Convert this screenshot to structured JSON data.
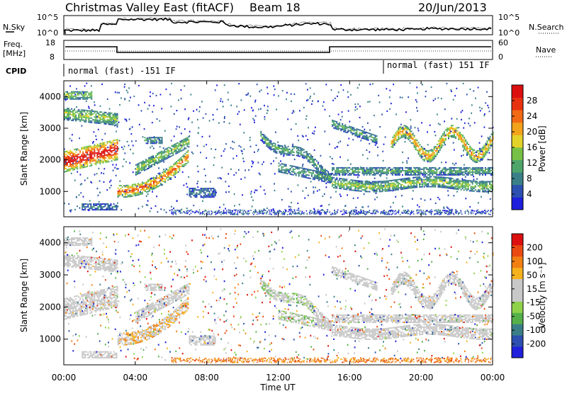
{
  "header": {
    "title": "Christmas Valley East (fitACF)",
    "beam": "Beam 18",
    "date": "20/Jun/2013"
  },
  "left_labels": {
    "nsky": "N.Sky",
    "freq_line1": "Freq.",
    "freq_line2": "[MHz]",
    "cpid": "CPID"
  },
  "right_labels": {
    "nsearch": "N.Search",
    "nave": "Nave"
  },
  "noise_panel": {
    "left_ticks": [
      "10^5",
      "10^0"
    ],
    "right_ticks": [
      "10^5",
      "10^0"
    ]
  },
  "freq_panel": {
    "left_ticks": [
      "18",
      "8"
    ],
    "right_ticks": [
      "60",
      "0"
    ]
  },
  "cpid_panel": {
    "mode_a": "normal (fast) -151 IF",
    "mode_b": "normal (fast) 151 IF"
  },
  "colors": {
    "power_scale": [
      "#1f1fdc",
      "#2c4fb0",
      "#3a7f88",
      "#4ea56a",
      "#77c246",
      "#e3d22a",
      "#f3a21b",
      "#f26a14",
      "#e8320f",
      "#dc0f0f"
    ],
    "velocity_scale": [
      "#1f1fdc",
      "#2c4fb0",
      "#3a7f88",
      "#55b04a",
      "#8fd24a",
      "#c8c8c8",
      "#c8c8c8",
      "#f5b21e",
      "#f27f12",
      "#ea4a12",
      "#dc0f0f"
    ]
  },
  "chart_data": [
    {
      "type": "heatmap",
      "name": "power",
      "ylabel": "Slant Range [km]",
      "yticks": [
        "1000",
        "2000",
        "3000",
        "4000"
      ],
      "ylim": [
        200,
        4500
      ],
      "colorbar_label": "Power [dB]",
      "colorbar_ticks": [
        "4",
        "8",
        "12",
        "16",
        "20",
        "24",
        "28"
      ],
      "colorbar_range": [
        0,
        32
      ]
    },
    {
      "type": "heatmap",
      "name": "velocity",
      "ylabel": "Slant Range [km]",
      "yticks": [
        "1000",
        "2000",
        "3000",
        "4000"
      ],
      "ylim": [
        200,
        4500
      ],
      "colorbar_label": "Velocity [m s⁻¹]",
      "colorbar_ticks": [
        "200",
        "100",
        "50",
        "15",
        "-15",
        "-50",
        "-100",
        "-200"
      ]
    }
  ],
  "xaxis": {
    "ticks": [
      "00:00",
      "04:00",
      "08:00",
      "12:00",
      "16:00",
      "20:00",
      "00:00"
    ],
    "label": "Time UT"
  }
}
